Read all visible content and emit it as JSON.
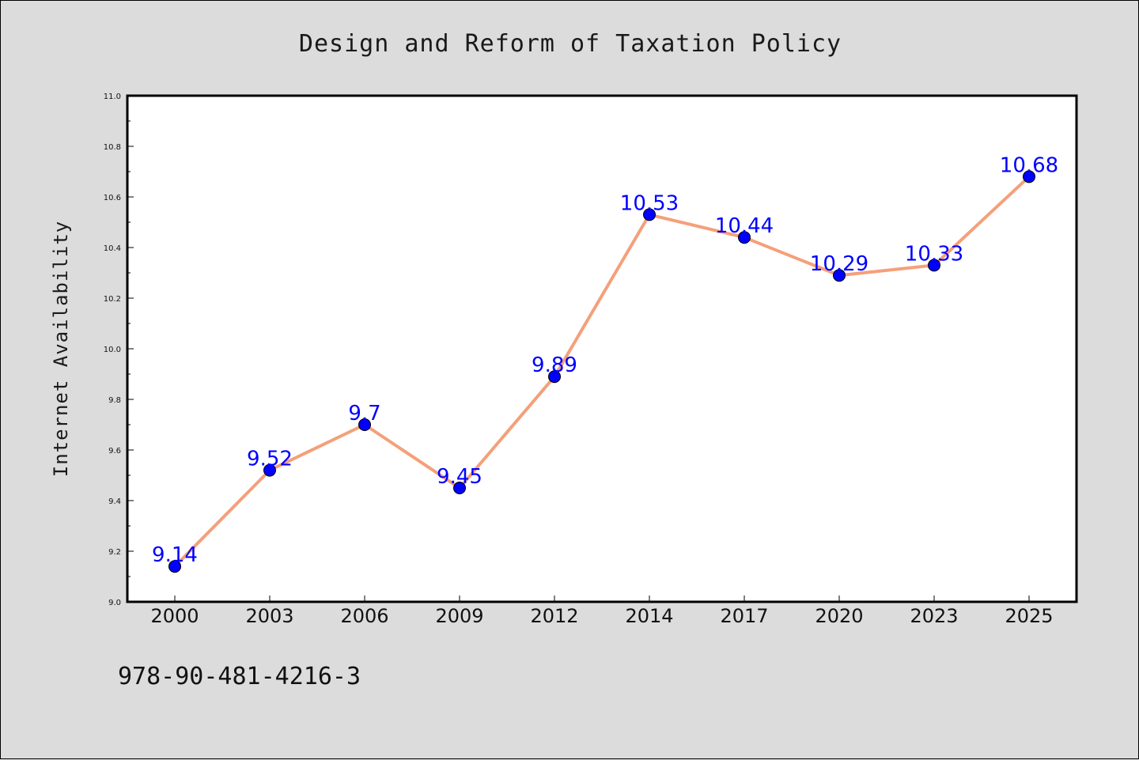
{
  "chart_data": {
    "type": "line",
    "title": "Design and Reform of Taxation Policy",
    "xlabel": "",
    "ylabel": "Internet Availability",
    "categories": [
      "2000",
      "2003",
      "2006",
      "2009",
      "2012",
      "2014",
      "2017",
      "2020",
      "2023",
      "2025"
    ],
    "series": [
      {
        "values": [
          9.14,
          9.52,
          9.7,
          9.45,
          9.89,
          10.53,
          10.44,
          10.29,
          10.33,
          10.68
        ],
        "data_labels": [
          "9.14",
          "9.52",
          "9.7",
          "9.45",
          "9.89",
          "10.53",
          "10.44",
          "10.29",
          "10.33",
          "10.68"
        ],
        "line_color": "#f4a07a",
        "marker_color": "#0000ff"
      }
    ],
    "ylim": [
      9.0,
      11.0
    ],
    "yticks": [
      9.0,
      9.2,
      9.4,
      9.6,
      9.8,
      10.0,
      10.2,
      10.4,
      10.6,
      10.8,
      11.0
    ],
    "ytick_labels": [
      "9.0",
      "9.2",
      "9.4",
      "9.6",
      "9.8",
      "10.0",
      "10.2",
      "10.4",
      "10.6",
      "10.8",
      "11.0"
    ],
    "grid": false,
    "plot_background": "#ffffff",
    "figure_background": "#dcdcdc"
  },
  "footnote": "978-90-481-4216-3"
}
